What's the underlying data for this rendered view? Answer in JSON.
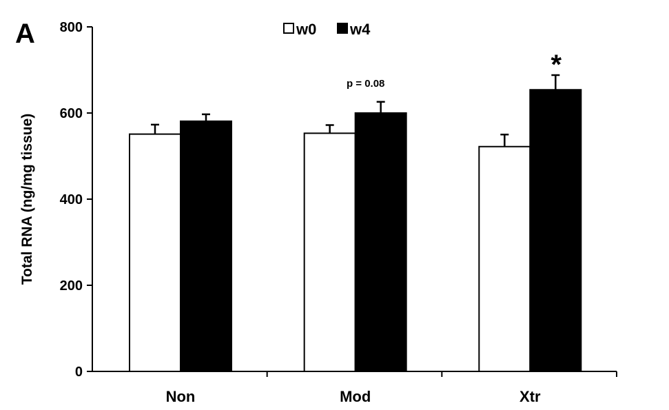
{
  "chart_data": {
    "type": "bar",
    "panel_label": "A",
    "ylabel": "Total RNA (ng/mg tissue)",
    "xlabel": "",
    "ylim": [
      0,
      800
    ],
    "yticks": [
      "0",
      "200",
      "400",
      "600",
      "800"
    ],
    "categories": [
      "Non",
      "Mod",
      "Xtr"
    ],
    "series": [
      {
        "name": "w0",
        "color": "#ffffff",
        "values": [
          551,
          553,
          522
        ],
        "errors": [
          22,
          19,
          28
        ]
      },
      {
        "name": "w4",
        "color": "#000000",
        "values": [
          581,
          600,
          654
        ],
        "errors": [
          16,
          26,
          34
        ]
      }
    ],
    "annotations": [
      {
        "category": "Mod",
        "series": "w4",
        "text": "p = 0.08"
      },
      {
        "category": "Xtr",
        "series": "w4",
        "text": "*"
      }
    ],
    "legend_position": "top-center",
    "grid": false
  }
}
